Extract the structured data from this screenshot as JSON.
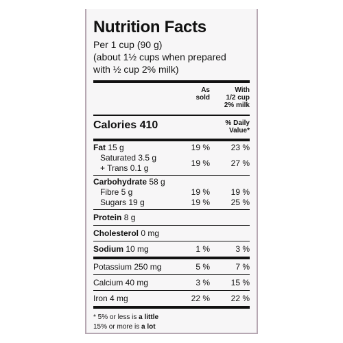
{
  "title": "Nutrition Facts",
  "serving": {
    "line1": "Per 1 cup (90 g)",
    "line2": "(about 1½ cups when prepared",
    "line3": "with ½ cup 2% milk)"
  },
  "columns": {
    "as_sold_1": "As",
    "as_sold_2": "sold",
    "with_1": "With",
    "with_2": "1/2 cup",
    "with_3": "2% milk"
  },
  "calories": {
    "label": "Calories 410",
    "dv_1": "% Daily",
    "dv_2": "Value*"
  },
  "fat": {
    "label": "Fat",
    "amount": "15 g",
    "dv1": "19 %",
    "dv2": "23 %"
  },
  "saturated": {
    "label": "Saturated 3.5 g"
  },
  "trans": {
    "label": "+ Trans 0.1 g",
    "dv1": "19 %",
    "dv2": "27 %"
  },
  "carbohydrate": {
    "label": "Carbohydrate",
    "amount": "58 g"
  },
  "fibre": {
    "label": "Fibre 5 g",
    "dv1": "19 %",
    "dv2": "19 %"
  },
  "sugars": {
    "label": "Sugars 19 g",
    "dv1": "19 %",
    "dv2": "25 %"
  },
  "protein": {
    "label": "Protein",
    "amount": "8 g"
  },
  "cholesterol": {
    "label": "Cholesterol",
    "amount": "0 mg"
  },
  "sodium": {
    "label": "Sodium",
    "amount": "10 mg",
    "dv1": "1 %",
    "dv2": "3 %"
  },
  "potassium": {
    "label": "Potassium 250 mg",
    "dv1": "5 %",
    "dv2": "7 %"
  },
  "calcium": {
    "label": "Calcium 40 mg",
    "dv1": "3 %",
    "dv2": "15 %"
  },
  "iron": {
    "label": "Iron 4 mg",
    "dv1": "22 %",
    "dv2": "22 %"
  },
  "footnote": {
    "part1": "* 5% or less is ",
    "bold1": "a little",
    "part2": "15% or more is ",
    "bold2": "a lot"
  },
  "colors": {
    "border": "#b6a7b2",
    "background": "#f7f6f7",
    "text": "#111111"
  }
}
